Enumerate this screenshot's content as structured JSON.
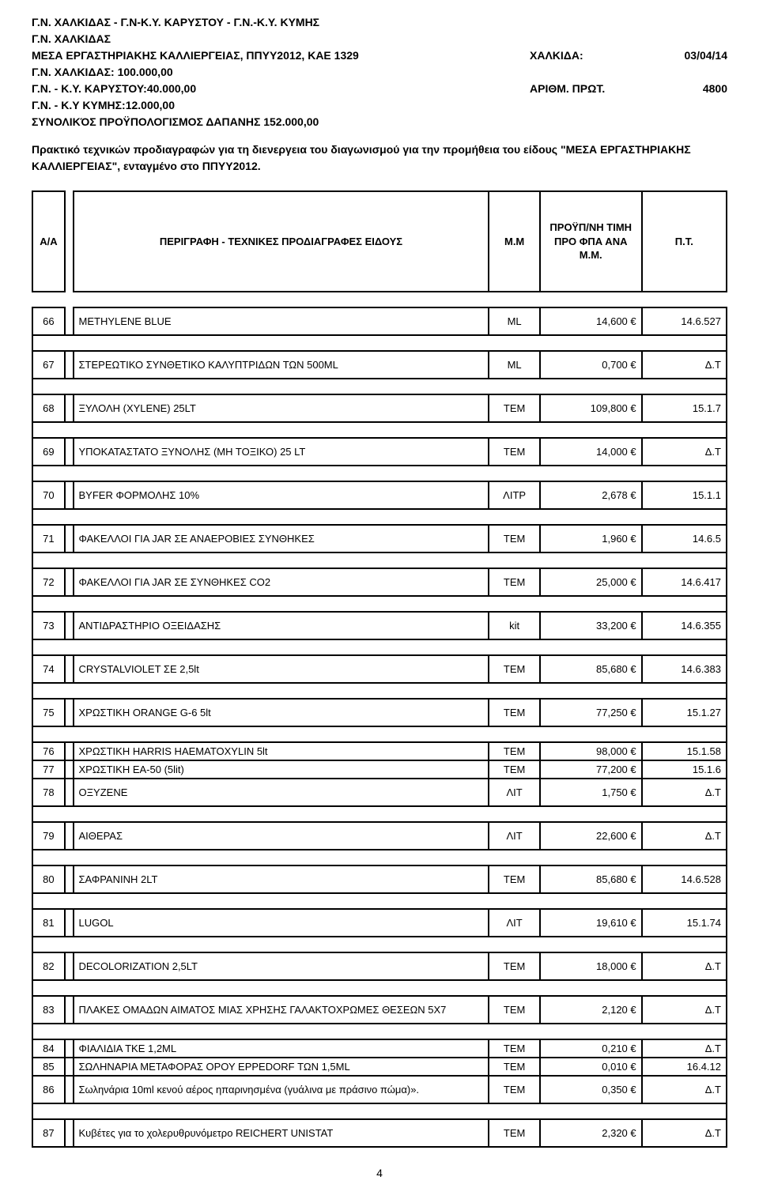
{
  "header": {
    "line1": "Γ.Ν. ΧΑΛΚΙΔΑΣ - Γ.Ν-Κ.Υ. ΚΑΡΥΣΤΟΥ - Γ.Ν.-Κ.Υ. ΚΥΜΗΣ",
    "line2": "Γ.Ν. ΧΑΛΚΙΔΑΣ",
    "line3": "ΜΕΣΑ ΕΡΓΑΣΤΗΡΙΑΚΗΣ ΚΑΛΛΙΕΡΓΕΙΑΣ, ΠΠΥΥ2012, ΚΑΕ 1329",
    "line4": "Γ.Ν. ΧΑΛΚΙΔΑΣ: 100.000,00",
    "line5": "Γ.Ν. - Κ.Υ. ΚΑΡΥΣΤΟΥ:40.000,00",
    "line6": "Γ.Ν. - Κ.Υ ΚΥΜΗΣ:12.000,00",
    "line7": "ΣΥΝΟΛΙΚΌΣ ΠΡΟΫΠΟΛΟΓΙΣΜΟΣ ΔΑΠΑΝΗΣ 152.000,00",
    "loc_label": "ΧΑΛΚΙΔΑ:",
    "loc_date": "03/04/14",
    "prot_label": "ΑΡΙΘΜ. ΠΡΩΤ.",
    "prot_num": "4800"
  },
  "description": "Πρακτικό τεχνικών προδιαγραφών για τη διενεργεια του διαγωνισμού για την προμήθεια του είδους \"ΜΕΣΑ ΕΡΓΑΣΤΗΡΙΑΚΗΣ ΚΑΛΛΙΕΡΓΕΙΑΣ\", ενταγμένο στο ΠΠΥΥ2012.",
  "columns": {
    "aa": "Α/Α",
    "desc": "ΠΕΡΙΓΡΑΦΗ - ΤΕΧΝΙΚΕΣ ΠΡΟΔΙΑΓΡΑΦΕΣ ΕΙΔΟΥΣ",
    "mm": "Μ.Μ",
    "price": "ΠΡΟΫΠ/ΝΗ ΤΙΜΗ ΠΡΟ ΦΠΑ ΑΝΑ Μ.Μ.",
    "pt": "Π.Τ."
  },
  "rows": [
    {
      "n": "66",
      "d": "METHYLENE BLUE",
      "m": "ML",
      "p": "14,600 €",
      "pt": "14.6.527",
      "gap": true,
      "tight": false
    },
    {
      "n": "67",
      "d": "ΣΤΕΡΕΩΤΙΚΟ ΣΥΝΘΕΤΙΚΟ ΚΑΛΥΠΤΡΙΔΩΝ ΤΩΝ 500ML",
      "m": "ML",
      "p": "0,700 €",
      "pt": "Δ.Τ",
      "gap": true,
      "tight": false
    },
    {
      "n": "68",
      "d": "ΞΥΛΟΛΗ (XYLENE) 25LT",
      "m": "ΤΕΜ",
      "p": "109,800 €",
      "pt": "15.1.7",
      "gap": true,
      "tight": false
    },
    {
      "n": "69",
      "d": "ΥΠΟΚΑΤΑΣΤΑΤΟ ΞΥΝΟΛΗΣ (ΜΗ ΤΟΞΙΚΟ) 25 LT",
      "m": "ΤΕΜ",
      "p": "14,000 €",
      "pt": "Δ.Τ",
      "gap": true,
      "tight": false
    },
    {
      "n": "70",
      "d": "BYFER ΦΟΡΜΟΛΗΣ 10%",
      "m": "ΛΙΤΡ",
      "p": "2,678 €",
      "pt": "15.1.1",
      "gap": true,
      "tight": false
    },
    {
      "n": "71",
      "d": "ΦΑΚΕΛΛΟΙ ΓΙΑ JAR ΣΕ ΑΝΑΕΡΟΒΙΕΣ ΣΥΝΘΗΚΕΣ",
      "m": "ΤΕΜ",
      "p": "1,960 €",
      "pt": "14.6.5",
      "gap": true,
      "tight": false
    },
    {
      "n": "72",
      "d": "ΦΑΚΕΛΛΟΙ ΓΙΑ JAR ΣΕ ΣΥΝΘΗΚΕΣ CO2",
      "m": "ΤΕΜ",
      "p": "25,000 €",
      "pt": "14.6.417",
      "gap": true,
      "tight": false
    },
    {
      "n": "73",
      "d": "ΑΝΤΙΔΡΑΣΤΗΡΙΟ ΟΞΕΙΔΑΣΗΣ",
      "m": "kit",
      "p": "33,200 €",
      "pt": "14.6.355",
      "gap": true,
      "tight": false
    },
    {
      "n": "74",
      "d": "CRYSTALVIOLET ΣΕ 2,5lt",
      "m": "ΤΕΜ",
      "p": "85,680 €",
      "pt": "14.6.383",
      "gap": true,
      "tight": false
    },
    {
      "n": "75",
      "d": "ΧΡΩΣΤΙΚΗ ORANGE G-6 5lt",
      "m": "ΤΕΜ",
      "p": "77,250 €",
      "pt": "15.1.27",
      "gap": true,
      "tight": false
    },
    {
      "n": "76",
      "d": "ΧΡΩΣΤΙΚΗ HARRIS HAEMATOXYLIN 5lt",
      "m": "ΤΕΜ",
      "p": "98,000 €",
      "pt": "15.1.58",
      "gap": false,
      "tight": true
    },
    {
      "n": "77",
      "d": "ΧΡΩΣΤΙΚΗ ΕΑ-50  (5lit)",
      "m": "ΤΕΜ",
      "p": "77,200 €",
      "pt": "15.1.6",
      "gap": false,
      "tight": true
    },
    {
      "n": "78",
      "d": "ΟΞΥΖΕΝΕ",
      "m": "ΛΙΤ",
      "p": "1,750 €",
      "pt": "Δ.Τ",
      "gap": true,
      "tight": false
    },
    {
      "n": "79",
      "d": "ΑΙΘΕΡΑΣ",
      "m": "ΛΙΤ",
      "p": "22,600 €",
      "pt": "Δ.Τ",
      "gap": true,
      "tight": false
    },
    {
      "n": "80",
      "d": "ΣΑΦΡΑΝΙΝΗ 2LT",
      "m": "ΤΕΜ",
      "p": "85,680 €",
      "pt": "14.6.528",
      "gap": true,
      "tight": false
    },
    {
      "n": "81",
      "d": "LUGOL",
      "m": "ΛΙΤ",
      "p": "19,610 €",
      "pt": "15.1.74",
      "gap": true,
      "tight": false
    },
    {
      "n": "82",
      "d": "DECOLORIZATION 2,5LT",
      "m": "ΤΕΜ",
      "p": "18,000 €",
      "pt": "Δ.Τ",
      "gap": true,
      "tight": false
    },
    {
      "n": "83",
      "d": "ΠΛΑΚΕΣ ΟΜΑΔΩΝ ΑΙΜΑΤΟΣ ΜΙΑΣ ΧΡΗΣΗΣ ΓΑΛΑΚΤΟΧΡΩΜΕΣ ΘΕΣΕΩΝ 5Χ7",
      "m": "ΤΕΜ",
      "p": "2,120 €",
      "pt": "Δ.Τ",
      "gap": true,
      "tight": false
    },
    {
      "n": "84",
      "d": "ΦΙΑΛΙΔΙΑ ΤΚΕ 1,2ML",
      "m": "ΤΕΜ",
      "p": "0,210 €",
      "pt": "Δ.Τ",
      "gap": false,
      "tight": true
    },
    {
      "n": "85",
      "d": "ΣΩΛΗΝΑΡΙΑ ΜΕΤΑΦΟΡΑΣ ΟΡΟΥ EPPEDORF ΤΩΝ 1,5ML",
      "m": "ΤΕΜ",
      "p": "0,010 €",
      "pt": "16.4.12",
      "gap": false,
      "tight": true
    },
    {
      "n": "86",
      "d": "Σωληνάρια 10ml κενού αέρος ηπαρινησμένα (γυάλινα με πράσινο πώμα)».",
      "m": "ΤΕΜ",
      "p": "0,350 €",
      "pt": "Δ.Τ",
      "gap": true,
      "tight": false
    },
    {
      "n": "87",
      "d": "Κυβέτες για το χολερυθρυνόμετρο REICHERT UNISTAT",
      "m": "ΤΕΜ",
      "p": "2,320 €",
      "pt": "Δ.Τ",
      "gap": true,
      "tight": false
    }
  ],
  "page_num": "4"
}
